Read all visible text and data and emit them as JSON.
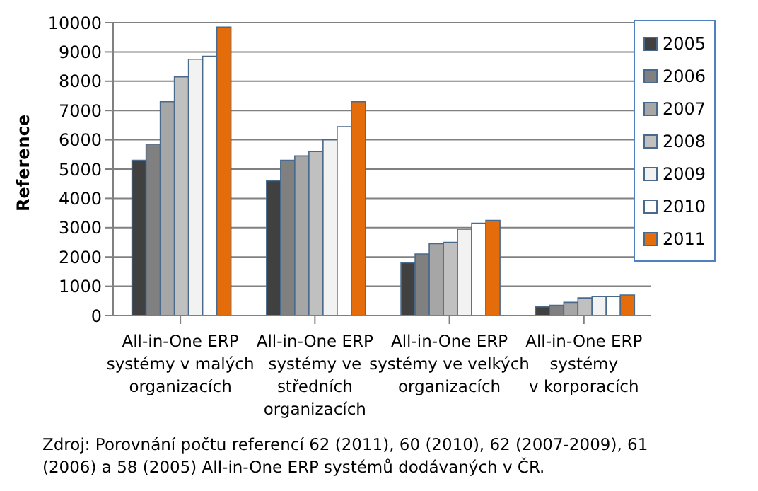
{
  "chart_data": {
    "type": "bar",
    "ylabel": "Reference",
    "categories": [
      "All-in-One ERP\nsystémy v malých\norganizacích",
      "All-in-One ERP\nsystémy ve\nstředních\norganizacích",
      "All-in-One ERP\nsystémy ve velkých\norganizacích",
      "All-in-One ERP\nsystémy\nv korporacích"
    ],
    "series": [
      {
        "name": "2005",
        "color": "#404040",
        "values": [
          5300,
          4600,
          1800,
          300
        ]
      },
      {
        "name": "2006",
        "color": "#808080",
        "values": [
          5850,
          5300,
          2100,
          350
        ]
      },
      {
        "name": "2007",
        "color": "#a6a6a6",
        "values": [
          7300,
          5450,
          2450,
          450
        ]
      },
      {
        "name": "2008",
        "color": "#c0c0c0",
        "values": [
          8150,
          5600,
          2500,
          600
        ]
      },
      {
        "name": "2009",
        "color": "#f2f2f2",
        "values": [
          8750,
          6000,
          2950,
          650
        ]
      },
      {
        "name": "2010",
        "color": "#ffffff",
        "values": [
          8850,
          6450,
          3150,
          650
        ]
      },
      {
        "name": "2011",
        "color": "#e46c0a",
        "values": [
          9850,
          7300,
          3250,
          700
        ]
      }
    ],
    "ylim": [
      0,
      10000
    ],
    "yticks": [
      0,
      1000,
      2000,
      3000,
      4000,
      5000,
      6000,
      7000,
      8000,
      9000,
      10000
    ],
    "grid": "y",
    "legend": "top right",
    "annotations": [
      "Zdroj: Porovnání počtu referencí 62 (2011), 60 (2010), 62 (2007-2009), 61 (2006) a 58 (2005) All-in-One ERP systémů  dodávaných v ČR."
    ]
  }
}
